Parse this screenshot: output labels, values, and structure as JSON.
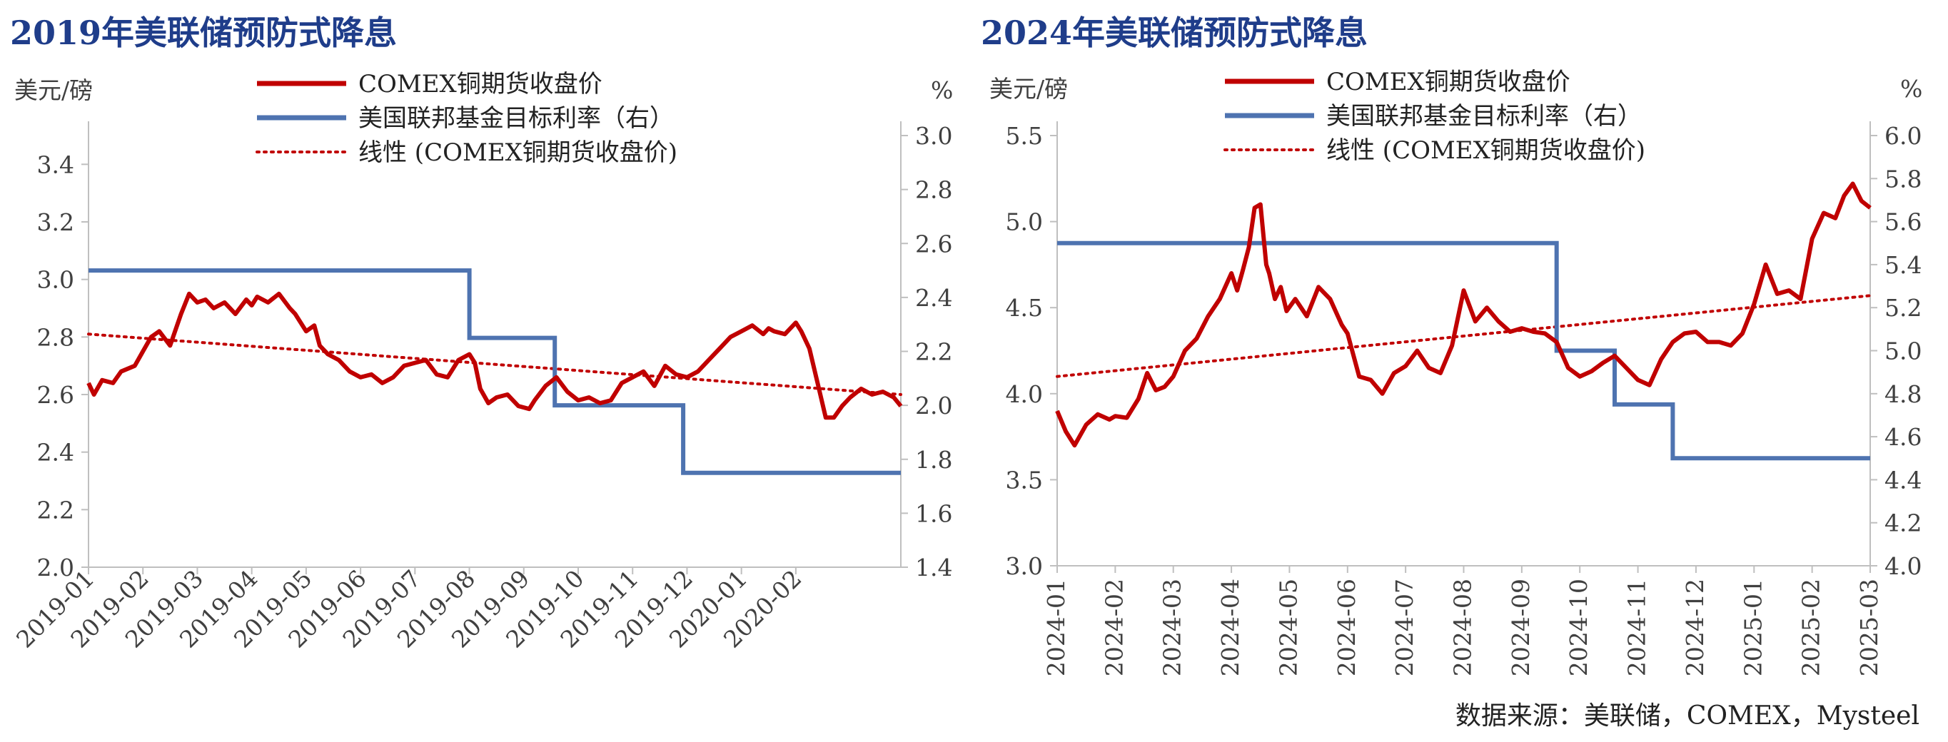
{
  "left_title": "2019年美联储预防式降息",
  "right_title": "2024年美联储预防式降息",
  "source_note": "数据来源：美联储，COMEX，Mysteel",
  "colors": {
    "copper": "#c00000",
    "rate": "#4e73b0",
    "title": "#1f3d8a",
    "axis": "#bfbfbf"
  },
  "chart_data": [
    {
      "type": "line",
      "title": "2019年美联储预防式降息",
      "ylabel_left": "美元/磅",
      "ylabel_right": "%",
      "ylim_left": [
        2.0,
        3.5
      ],
      "yticks_left": [
        2.0,
        2.2,
        2.4,
        2.6,
        2.8,
        3.0,
        3.2,
        3.4
      ],
      "ylim_right": [
        1.4,
        3.0
      ],
      "yticks_right": [
        1.4,
        1.6,
        1.8,
        2.0,
        2.2,
        2.4,
        2.6,
        2.8,
        3.0
      ],
      "x_ticks": [
        "2019-01",
        "2019-02",
        "2019-03",
        "2019-04",
        "2019-05",
        "2019-06",
        "2019-07",
        "2019-08",
        "2019-09",
        "2019-10",
        "2019-11",
        "2019-12",
        "2020-01",
        "2020-02"
      ],
      "x_end": 14.93,
      "legend": [
        "COMEX铜期货收盘价",
        "美国联邦基金目标利率（右）",
        "线性 (COMEX铜期货收盘价)"
      ],
      "series": [
        {
          "name": "COMEX铜期货收盘价",
          "axis": "left",
          "x": [
            0.0,
            0.1,
            0.25,
            0.45,
            0.6,
            0.85,
            1.0,
            1.15,
            1.3,
            1.5,
            1.7,
            1.85,
            2.0,
            2.15,
            2.3,
            2.5,
            2.7,
            2.9,
            3.0,
            3.1,
            3.3,
            3.5,
            3.7,
            3.8,
            4.0,
            4.15,
            4.25,
            4.4,
            4.6,
            4.8,
            5.0,
            5.2,
            5.4,
            5.6,
            5.8,
            6.0,
            6.2,
            6.4,
            6.6,
            6.8,
            7.0,
            7.1,
            7.2,
            7.35,
            7.5,
            7.7,
            7.9,
            8.1,
            8.2,
            8.4,
            8.6,
            8.8,
            9.0,
            9.2,
            9.4,
            9.6,
            9.8,
            10.0,
            10.2,
            10.4,
            10.6,
            10.8,
            11.0,
            11.2,
            11.4,
            11.6,
            11.8,
            12.0,
            12.2,
            12.4,
            12.5,
            12.6,
            12.8,
            13.0,
            13.1,
            13.25,
            13.4,
            13.55,
            13.7,
            13.85,
            14.0,
            14.2,
            14.4,
            14.6,
            14.8,
            14.93
          ],
          "y": [
            2.64,
            2.6,
            2.65,
            2.64,
            2.68,
            2.7,
            2.75,
            2.8,
            2.82,
            2.77,
            2.88,
            2.95,
            2.92,
            2.93,
            2.9,
            2.92,
            2.88,
            2.93,
            2.91,
            2.94,
            2.92,
            2.95,
            2.9,
            2.88,
            2.82,
            2.84,
            2.77,
            2.74,
            2.72,
            2.68,
            2.66,
            2.67,
            2.64,
            2.66,
            2.7,
            2.71,
            2.72,
            2.67,
            2.66,
            2.72,
            2.74,
            2.71,
            2.62,
            2.57,
            2.59,
            2.6,
            2.56,
            2.55,
            2.58,
            2.63,
            2.66,
            2.61,
            2.58,
            2.59,
            2.57,
            2.58,
            2.64,
            2.66,
            2.68,
            2.63,
            2.7,
            2.67,
            2.66,
            2.68,
            2.72,
            2.76,
            2.8,
            2.82,
            2.84,
            2.81,
            2.83,
            2.82,
            2.81,
            2.85,
            2.82,
            2.76,
            2.64,
            2.52,
            2.52,
            2.56,
            2.59,
            2.62,
            2.6,
            2.61,
            2.59,
            2.56
          ]
        },
        {
          "name": "美国联邦基金目标利率（右）",
          "axis": "right",
          "step": true,
          "x": [
            0.0,
            7.0,
            7.0,
            8.57,
            8.57,
            10.0,
            10.0,
            10.93,
            10.93,
            14.93
          ],
          "y": [
            2.5,
            2.5,
            2.25,
            2.25,
            2.0,
            2.0,
            2.0,
            2.0,
            1.75,
            1.75
          ]
        },
        {
          "name": "线性 (COMEX铜期货收盘价)",
          "axis": "left",
          "trend": true,
          "x": [
            0.0,
            14.93
          ],
          "y": [
            2.81,
            2.6
          ]
        }
      ]
    },
    {
      "type": "line",
      "title": "2024年美联储预防式降息",
      "ylabel_left": "美元/磅",
      "ylabel_right": "%",
      "ylim_left": [
        3.0,
        5.5
      ],
      "yticks_left": [
        3.0,
        3.5,
        4.0,
        4.5,
        5.0,
        5.5
      ],
      "ylim_right": [
        4.0,
        6.0
      ],
      "yticks_right": [
        4.0,
        4.2,
        4.4,
        4.6,
        4.8,
        5.0,
        5.2,
        5.4,
        5.6,
        5.8,
        6.0
      ],
      "x_ticks": [
        "2024-01",
        "2024-02",
        "2024-03",
        "2024-04",
        "2024-05",
        "2024-06",
        "2024-07",
        "2024-08",
        "2024-09",
        "2024-10",
        "2024-11",
        "2024-12",
        "2025-01",
        "2025-02",
        "2025-03"
      ],
      "x_end": 14.0,
      "legend": [
        "COMEX铜期货收盘价",
        "美国联邦基金目标利率（右）",
        "线性 (COMEX铜期货收盘价)"
      ],
      "series": [
        {
          "name": "COMEX铜期货收盘价",
          "axis": "left",
          "x": [
            0.0,
            0.15,
            0.3,
            0.5,
            0.7,
            0.9,
            1.0,
            1.2,
            1.4,
            1.55,
            1.7,
            1.85,
            2.0,
            2.2,
            2.4,
            2.6,
            2.8,
            3.0,
            3.1,
            3.2,
            3.3,
            3.4,
            3.5,
            3.6,
            3.65,
            3.75,
            3.85,
            3.95,
            4.1,
            4.3,
            4.5,
            4.7,
            4.9,
            5.0,
            5.2,
            5.4,
            5.6,
            5.8,
            6.0,
            6.2,
            6.4,
            6.6,
            6.8,
            7.0,
            7.2,
            7.4,
            7.6,
            7.8,
            8.0,
            8.2,
            8.4,
            8.6,
            8.8,
            9.0,
            9.2,
            9.4,
            9.6,
            9.8,
            10.0,
            10.2,
            10.4,
            10.6,
            10.8,
            11.0,
            11.2,
            11.4,
            11.6,
            11.8,
            12.0,
            12.2,
            12.4,
            12.6,
            12.8,
            13.0,
            13.2,
            13.4,
            13.55,
            13.7,
            13.85,
            14.0
          ],
          "y": [
            3.9,
            3.78,
            3.7,
            3.82,
            3.88,
            3.85,
            3.87,
            3.86,
            3.97,
            4.12,
            4.02,
            4.04,
            4.1,
            4.25,
            4.32,
            4.45,
            4.55,
            4.7,
            4.6,
            4.72,
            4.85,
            5.08,
            5.1,
            4.75,
            4.7,
            4.55,
            4.62,
            4.48,
            4.55,
            4.45,
            4.62,
            4.55,
            4.4,
            4.35,
            4.1,
            4.08,
            4.0,
            4.12,
            4.16,
            4.25,
            4.15,
            4.12,
            4.28,
            4.6,
            4.42,
            4.5,
            4.42,
            4.36,
            4.38,
            4.36,
            4.35,
            4.3,
            4.15,
            4.1,
            4.13,
            4.18,
            4.22,
            4.15,
            4.08,
            4.05,
            4.2,
            4.3,
            4.35,
            4.36,
            4.3,
            4.3,
            4.28,
            4.35,
            4.52,
            4.75,
            4.58,
            4.6,
            4.55,
            4.9,
            5.05,
            5.02,
            5.15,
            5.22,
            5.12,
            5.08
          ]
        },
        {
          "name": "美国联邦基金目标利率（右）",
          "axis": "right",
          "step": true,
          "x": [
            0.0,
            8.6,
            8.6,
            9.6,
            9.6,
            10.6,
            10.6,
            14.0
          ],
          "y": [
            5.5,
            5.5,
            5.0,
            5.0,
            4.75,
            4.75,
            4.5,
            4.5
          ]
        },
        {
          "name": "线性 (COMEX铜期货收盘价)",
          "axis": "left",
          "trend": true,
          "x": [
            0.0,
            14.0
          ],
          "y": [
            4.1,
            4.57
          ]
        }
      ]
    }
  ]
}
